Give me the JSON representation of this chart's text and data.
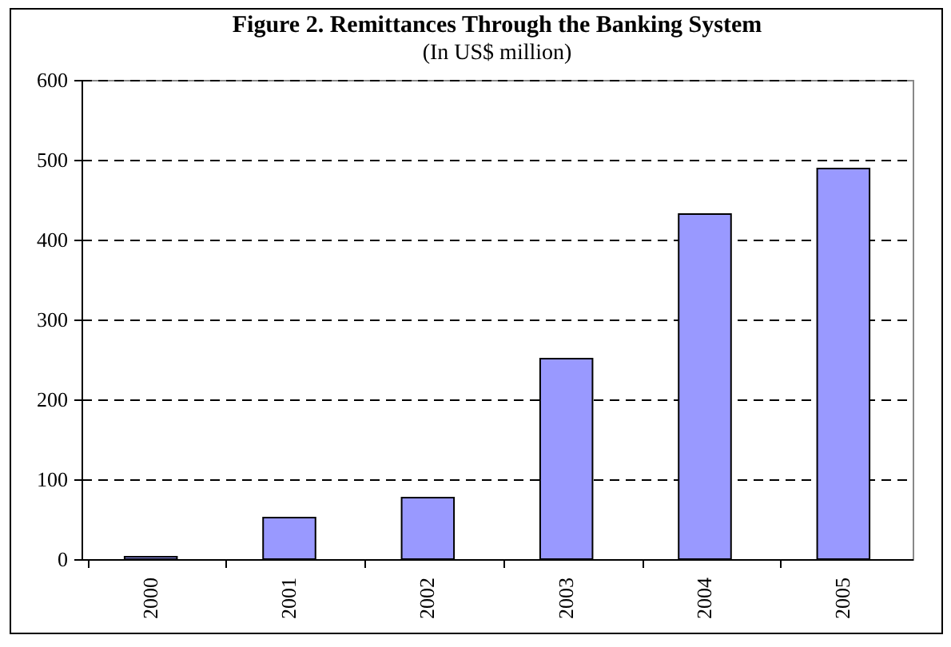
{
  "chart_data": {
    "type": "bar",
    "title": "Figure 2. Remittances Through the Banking System",
    "subtitle": "(In US$ million)",
    "categories": [
      "2000",
      "2001",
      "2002",
      "2003",
      "2004",
      "2005"
    ],
    "values": [
      3,
      52,
      77,
      251,
      432,
      489
    ],
    "color": "#9999ff",
    "ylim": [
      0,
      600
    ],
    "yticks": [
      0,
      100,
      200,
      300,
      400,
      500,
      600
    ],
    "grid": "y"
  }
}
